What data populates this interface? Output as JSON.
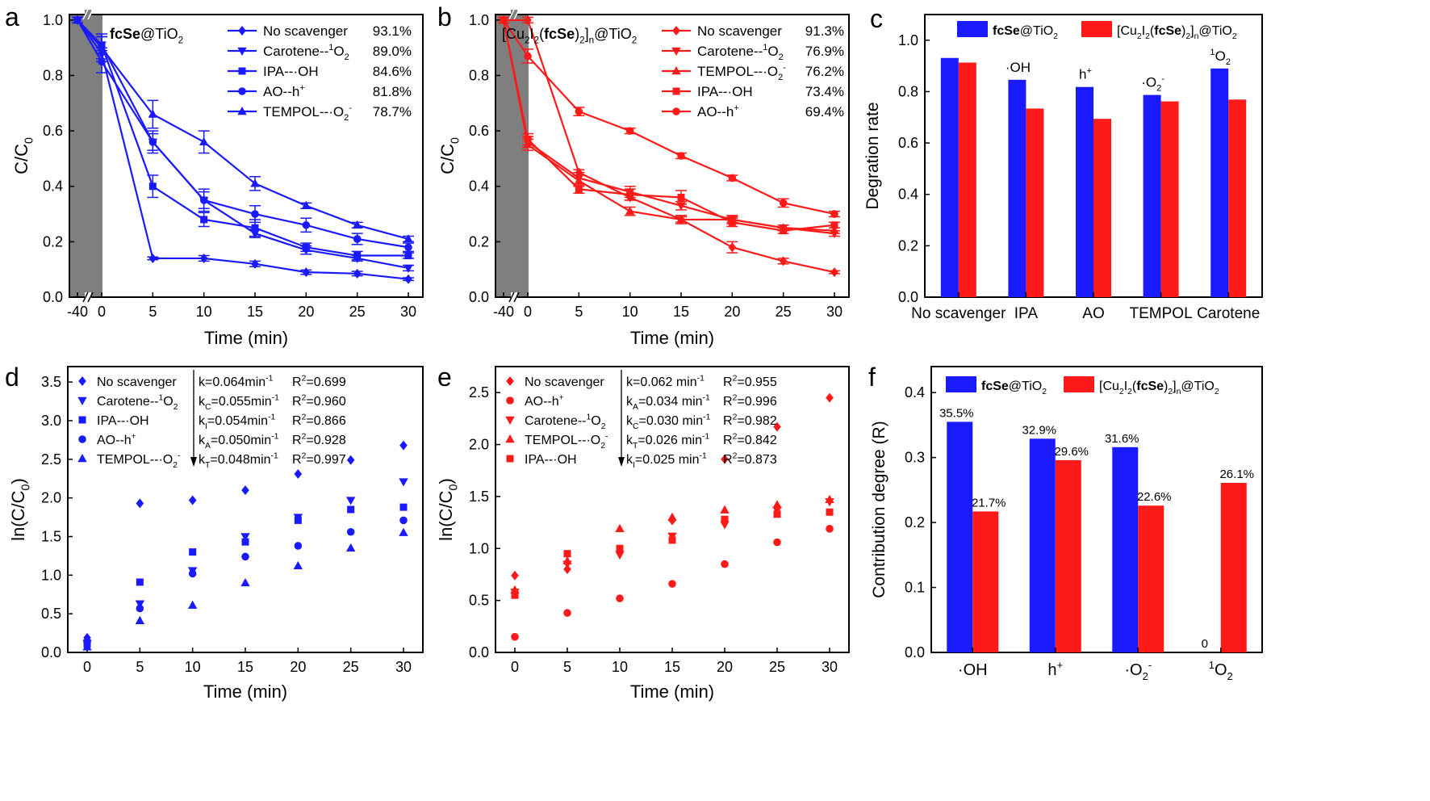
{
  "colors": {
    "blue": "#1a1aff",
    "red": "#ff1a1a",
    "gray": "#7f7f7f",
    "axis": "#000000"
  },
  "chart_data": [
    {
      "panel": "a",
      "type": "line",
      "title": "fcSe@TiO2",
      "xlabel": "Time (min)",
      "ylabel": "C/C0",
      "x": [
        -40,
        0,
        5,
        10,
        15,
        20,
        25,
        30
      ],
      "xticks": [
        "-40",
        "0",
        "5",
        "10",
        "15",
        "20",
        "25",
        "30"
      ],
      "yticks": [
        "0.0",
        "0.2",
        "0.4",
        "0.6",
        "0.8",
        "1.0"
      ],
      "ylim": [
        0,
        1.02
      ],
      "shaded_region": "dark adsorption (-40 to 0)",
      "legend_position": "top-right",
      "series": [
        {
          "name": "No scavenger",
          "value_label": "93.1%",
          "marker": "diamond",
          "values": [
            1.0,
            0.88,
            0.14,
            0.14,
            0.12,
            0.09,
            0.085,
            0.065
          ],
          "errors": [
            0.01,
            0.02,
            0.005,
            0.01,
            0.01,
            0.008,
            0.008,
            0.005
          ]
        },
        {
          "name": "Carotene--1O2",
          "value_label": "89.0%",
          "marker": "down-triangle",
          "values": [
            1.0,
            0.91,
            0.56,
            0.35,
            0.23,
            0.17,
            0.14,
            0.105
          ],
          "errors": [
            0.01,
            0.03,
            0.03,
            0.03,
            0.015,
            0.015,
            0.01,
            0.01
          ]
        },
        {
          "name": "IPA--OH",
          "value_label": "84.6%",
          "marker": "square",
          "values": [
            1.0,
            0.91,
            0.4,
            0.28,
            0.25,
            0.18,
            0.15,
            0.15
          ],
          "errors": [
            0.01,
            0.03,
            0.04,
            0.025,
            0.03,
            0.015,
            0.015,
            0.01
          ]
        },
        {
          "name": "AO--h+",
          "value_label": "81.8%",
          "marker": "circle",
          "values": [
            1.0,
            0.85,
            0.56,
            0.35,
            0.3,
            0.26,
            0.21,
            0.18
          ],
          "errors": [
            0.01,
            0.04,
            0.04,
            0.04,
            0.03,
            0.025,
            0.02,
            0.015
          ]
        },
        {
          "name": "TEMPOL--O2-",
          "value_label": "78.7%",
          "marker": "up-triangle",
          "values": [
            1.0,
            0.9,
            0.66,
            0.56,
            0.41,
            0.33,
            0.26,
            0.21
          ],
          "errors": [
            0.01,
            0.05,
            0.05,
            0.04,
            0.025,
            0.01,
            0.01,
            0.01
          ]
        }
      ]
    },
    {
      "panel": "b",
      "type": "line",
      "title": "[Cu2I2(fcSe)2]n@TiO2",
      "xlabel": "Time (min)",
      "ylabel": "C/C0",
      "x": [
        -40,
        0,
        5,
        10,
        15,
        20,
        25,
        30
      ],
      "xticks": [
        "-40",
        "0",
        "5",
        "10",
        "15",
        "20",
        "25",
        "30"
      ],
      "yticks": [
        "0.0",
        "0.2",
        "0.4",
        "0.6",
        "0.8",
        "1.0"
      ],
      "ylim": [
        0,
        1.02
      ],
      "shaded_region": "dark adsorption (-40 to 0)",
      "legend_position": "top-right",
      "series": [
        {
          "name": "No scavenger",
          "value_label": "91.3%",
          "marker": "diamond",
          "values": [
            1.0,
            1.0,
            0.45,
            0.36,
            0.28,
            0.18,
            0.13,
            0.09
          ],
          "errors": [
            0.01,
            0.01,
            0.01,
            0.01,
            0.01,
            0.02,
            0.01,
            0.005
          ]
        },
        {
          "name": "Carotene--1O2",
          "value_label": "76.9%",
          "marker": "down-triangle",
          "values": [
            1.0,
            0.56,
            0.43,
            0.38,
            0.33,
            0.28,
            0.25,
            0.23
          ],
          "errors": [
            0.01,
            0.02,
            0.02,
            0.02,
            0.015,
            0.015,
            0.01,
            0.01
          ]
        },
        {
          "name": "TEMPOL--O2-",
          "value_label": "76.2%",
          "marker": "up-triangle",
          "values": [
            1.0,
            0.55,
            0.42,
            0.31,
            0.28,
            0.28,
            0.25,
            0.24
          ],
          "errors": [
            0.01,
            0.02,
            0.02,
            0.015,
            0.015,
            0.01,
            0.01,
            0.01
          ]
        },
        {
          "name": "IPA--OH",
          "value_label": "73.4%",
          "marker": "square",
          "values": [
            1.0,
            0.57,
            0.39,
            0.37,
            0.36,
            0.27,
            0.24,
            0.26
          ],
          "errors": [
            0.01,
            0.02,
            0.015,
            0.02,
            0.025,
            0.015,
            0.01,
            0.01
          ]
        },
        {
          "name": "AO--h+",
          "value_label": "69.4%",
          "marker": "circle",
          "values": [
            1.0,
            0.87,
            0.67,
            0.6,
            0.51,
            0.43,
            0.34,
            0.3
          ],
          "errors": [
            0.01,
            0.025,
            0.015,
            0.01,
            0.01,
            0.01,
            0.015,
            0.01
          ]
        }
      ]
    },
    {
      "panel": "c",
      "type": "bar",
      "ylabel": "Degration rate",
      "categories": [
        "No scavenger",
        "IPA",
        "AO",
        "TEMPOL",
        "Carotene"
      ],
      "bar_annotations": [
        "",
        "·OH",
        "h+",
        "·O2-",
        "1O2"
      ],
      "yticks": [
        "0.0",
        "0.2",
        "0.4",
        "0.6",
        "0.8",
        "1.0"
      ],
      "ylim": [
        0,
        1.1
      ],
      "legend_position": "top",
      "series": [
        {
          "name": "fcSe@TiO2",
          "values": [
            0.931,
            0.846,
            0.818,
            0.787,
            0.89
          ]
        },
        {
          "name": "[Cu2I2(fcSe)2]n@TiO2",
          "values": [
            0.913,
            0.734,
            0.694,
            0.762,
            0.769
          ]
        }
      ]
    },
    {
      "panel": "d",
      "type": "scatter",
      "xlabel": "Time (min)",
      "ylabel": "ln(C/C0)",
      "x": [
        0,
        5,
        10,
        15,
        20,
        25,
        30
      ],
      "xticks": [
        "0",
        "5",
        "10",
        "15",
        "20",
        "25",
        "30"
      ],
      "yticks": [
        "0.0",
        "0.5",
        "1.0",
        "1.5",
        "2.0",
        "2.5",
        "3.0",
        "3.5"
      ],
      "ylim": [
        0,
        3.7
      ],
      "legend_position": "top-left",
      "series": [
        {
          "name": "No scavenger",
          "marker": "diamond",
          "fit": "k=0.064min-1",
          "r2": "R2=0.699",
          "values": [
            0.19,
            1.93,
            1.97,
            2.1,
            2.31,
            2.49,
            2.68
          ]
        },
        {
          "name": "Carotene--1O2",
          "marker": "down-triangle",
          "fit": "kC=0.055min-1",
          "r2": "R2=0.960",
          "values": [
            0.12,
            0.63,
            1.06,
            1.5,
            1.75,
            1.97,
            2.21
          ]
        },
        {
          "name": "IPA--OH",
          "marker": "square",
          "fit": "kI=0.054min-1",
          "r2": "R2=0.866",
          "values": [
            0.11,
            0.91,
            1.3,
            1.43,
            1.71,
            1.85,
            1.88
          ]
        },
        {
          "name": "AO--h+",
          "marker": "circle",
          "fit": "kA=0.050min-1",
          "r2": "R2=0.928",
          "values": [
            0.14,
            0.57,
            1.02,
            1.24,
            1.38,
            1.56,
            1.71
          ]
        },
        {
          "name": "TEMPOL--O2-",
          "marker": "up-triangle",
          "fit": "kT=0.048min-1",
          "r2": "R2=0.997",
          "values": [
            0.07,
            0.41,
            0.61,
            0.9,
            1.12,
            1.35,
            1.55
          ]
        }
      ]
    },
    {
      "panel": "e",
      "type": "scatter",
      "xlabel": "Time (min)",
      "ylabel": "ln(C/C0)",
      "x": [
        0,
        5,
        10,
        15,
        20,
        25,
        30
      ],
      "xticks": [
        "0",
        "5",
        "10",
        "15",
        "20",
        "25",
        "30"
      ],
      "yticks": [
        "0.0",
        "0.5",
        "1.0",
        "1.5",
        "2.0",
        "2.5"
      ],
      "ylim": [
        0,
        2.75
      ],
      "legend_position": "top-left",
      "series": [
        {
          "name": "No scavenger",
          "marker": "diamond",
          "fit": "k=0.062 min-1",
          "r2": "R2=0.955",
          "values": [
            0.74,
            0.8,
            0.98,
            1.27,
            1.86,
            2.17,
            2.45
          ]
        },
        {
          "name": "AO--h+",
          "marker": "circle",
          "fit": "kA=0.034 min-1",
          "r2": "R2=0.996",
          "values": [
            0.15,
            0.38,
            0.52,
            0.66,
            0.85,
            1.06,
            1.19
          ]
        },
        {
          "name": "Carotene--1O2",
          "marker": "down-triangle",
          "fit": "kC=0.030 min-1",
          "r2": "R2=0.982",
          "values": [
            0.58,
            0.85,
            0.94,
            1.12,
            1.23,
            1.37,
            1.45
          ]
        },
        {
          "name": "TEMPOL--O2-",
          "marker": "up-triangle",
          "fit": "kT=0.026 min-1",
          "r2": "R2=0.842",
          "values": [
            0.6,
            0.88,
            1.19,
            1.3,
            1.37,
            1.42,
            1.47
          ]
        },
        {
          "name": "IPA--OH",
          "marker": "square",
          "fit": "kI=0.025 min-1",
          "r2": "R2=0.873",
          "values": [
            0.55,
            0.95,
            1.0,
            1.08,
            1.28,
            1.33,
            1.35
          ]
        }
      ]
    },
    {
      "panel": "f",
      "type": "bar",
      "ylabel": "Contribution degree (R)",
      "categories": [
        "·OH",
        "h+",
        "·O2-",
        "1O2"
      ],
      "yticks": [
        "0.0",
        "0.1",
        "0.2",
        "0.3",
        "0.4"
      ],
      "ylim": [
        0,
        0.44
      ],
      "legend_position": "top",
      "series": [
        {
          "name": "fcSe@TiO2",
          "values": [
            0.355,
            0.329,
            0.316,
            0
          ],
          "labels": [
            "35.5%",
            "32.9%",
            "31.6%",
            "0"
          ]
        },
        {
          "name": "[Cu2I2(fcSe)2]n@TiO2",
          "values": [
            0.217,
            0.296,
            0.226,
            0.261
          ],
          "labels": [
            "21.7%",
            "29.6%",
            "22.6%",
            "26.1%"
          ]
        }
      ]
    }
  ],
  "rich": {
    "a_title": [
      [
        "fcSe",
        "b"
      ],
      [
        "@TiO",
        ""
      ],
      [
        "2",
        "sub"
      ]
    ],
    "b_title": [
      [
        "[Cu",
        ""
      ],
      [
        "2",
        "sub"
      ],
      [
        "I",
        ""
      ],
      [
        "2",
        "sub"
      ],
      [
        "(",
        ""
      ],
      [
        "fcSe",
        "b"
      ],
      [
        ")",
        ""
      ],
      [
        "2",
        "sub"
      ],
      [
        "]",
        ""
      ],
      [
        "n",
        "sub"
      ],
      [
        "@TiO",
        ""
      ],
      [
        "2",
        "sub"
      ]
    ],
    "cc0": [
      [
        "C/C",
        ""
      ],
      [
        "0",
        "sub"
      ]
    ],
    "lncc0": [
      [
        "ln(C/C",
        ""
      ],
      [
        "0",
        "sub"
      ],
      [
        ")",
        ""
      ]
    ],
    "legend_names": {
      "No scavenger": [
        [
          "No scavenger",
          ""
        ]
      ],
      "Carotene--1O2": [
        [
          "Carotene--",
          ""
        ],
        [
          "1",
          "sup"
        ],
        [
          "O",
          ""
        ],
        [
          "2",
          "sub"
        ]
      ],
      "IPA--OH": [
        [
          "IPA--·OH",
          ""
        ]
      ],
      "AO--h+": [
        [
          "AO--h",
          ""
        ],
        [
          "+",
          "sup"
        ]
      ],
      "TEMPOL--O2-": [
        [
          "TEMPOL--·O",
          ""
        ],
        [
          "2",
          "sub"
        ],
        [
          "-",
          "sup"
        ]
      ]
    },
    "fits": {
      "k=0.064min-1": [
        [
          "k=0.064min",
          ""
        ],
        [
          "-1",
          "sup"
        ]
      ],
      "kC=0.055min-1": [
        [
          "k",
          ""
        ],
        [
          "C",
          "sub"
        ],
        [
          "=0.055min",
          ""
        ],
        [
          "-1",
          "sup"
        ]
      ],
      "kI=0.054min-1": [
        [
          "k",
          ""
        ],
        [
          "I",
          "sub"
        ],
        [
          "=0.054min",
          ""
        ],
        [
          "-1",
          "sup"
        ]
      ],
      "kA=0.050min-1": [
        [
          "k",
          ""
        ],
        [
          "A",
          "sub"
        ],
        [
          "=0.050min",
          ""
        ],
        [
          "-1",
          "sup"
        ]
      ],
      "kT=0.048min-1": [
        [
          "k",
          ""
        ],
        [
          "T",
          "sub"
        ],
        [
          "=0.048min",
          ""
        ],
        [
          "-1",
          "sup"
        ]
      ],
      "k=0.062 min-1": [
        [
          "k=0.062 min",
          ""
        ],
        [
          "-1",
          "sup"
        ]
      ],
      "kA=0.034 min-1": [
        [
          "k",
          ""
        ],
        [
          "A",
          "sub"
        ],
        [
          "=0.034 min",
          ""
        ],
        [
          "-1",
          "sup"
        ]
      ],
      "kC=0.030 min-1": [
        [
          "k",
          ""
        ],
        [
          "C",
          "sub"
        ],
        [
          "=0.030 min",
          ""
        ],
        [
          "-1",
          "sup"
        ]
      ],
      "kT=0.026 min-1": [
        [
          "k",
          ""
        ],
        [
          "T",
          "sub"
        ],
        [
          "=0.026 min",
          ""
        ],
        [
          "-1",
          "sup"
        ]
      ],
      "kI=0.025 min-1": [
        [
          "k",
          ""
        ],
        [
          "I",
          "sub"
        ],
        [
          "=0.025 min",
          ""
        ],
        [
          "-1",
          "sup"
        ]
      ]
    },
    "r2": {
      "R2=0.699": [
        [
          "R",
          ""
        ],
        [
          "2",
          "sup"
        ],
        [
          "=0.699",
          ""
        ]
      ],
      "R2=0.960": [
        [
          "R",
          ""
        ],
        [
          "2",
          "sup"
        ],
        [
          "=0.960",
          ""
        ]
      ],
      "R2=0.866": [
        [
          "R",
          ""
        ],
        [
          "2",
          "sup"
        ],
        [
          "=0.866",
          ""
        ]
      ],
      "R2=0.928": [
        [
          "R",
          ""
        ],
        [
          "2",
          "sup"
        ],
        [
          "=0.928",
          ""
        ]
      ],
      "R2=0.997": [
        [
          "R",
          ""
        ],
        [
          "2",
          "sup"
        ],
        [
          "=0.997",
          ""
        ]
      ],
      "R2=0.955": [
        [
          "R",
          ""
        ],
        [
          "2",
          "sup"
        ],
        [
          "=0.955",
          ""
        ]
      ],
      "R2=0.996": [
        [
          "R",
          ""
        ],
        [
          "2",
          "sup"
        ],
        [
          "=0.996",
          ""
        ]
      ],
      "R2=0.982": [
        [
          "R",
          ""
        ],
        [
          "2",
          "sup"
        ],
        [
          "=0.982",
          ""
        ]
      ],
      "R2=0.842": [
        [
          "R",
          ""
        ],
        [
          "2",
          "sup"
        ],
        [
          "=0.842",
          ""
        ]
      ],
      "R2=0.873": [
        [
          "R",
          ""
        ],
        [
          "2",
          "sup"
        ],
        [
          "=0.873",
          ""
        ]
      ]
    },
    "c_annot": {
      "·OH": [
        [
          "·OH",
          ""
        ]
      ],
      "h+": [
        [
          "h",
          ""
        ],
        [
          "+",
          "sup"
        ]
      ],
      "·O2-": [
        [
          "·O",
          ""
        ],
        [
          "2",
          "sub"
        ],
        [
          "-",
          "sup"
        ]
      ],
      "1O2": [
        [
          "1",
          "sup"
        ],
        [
          "O",
          ""
        ],
        [
          "2",
          "sub"
        ]
      ]
    },
    "legend_cu": [
      [
        "[Cu",
        ""
      ],
      [
        "2",
        "sub"
      ],
      [
        "I",
        ""
      ],
      [
        "2",
        "sub"
      ],
      [
        "(",
        ""
      ],
      [
        "fcSe",
        "b"
      ],
      [
        ")",
        ""
      ],
      [
        "2",
        "sub"
      ],
      [
        "]",
        ""
      ],
      [
        "n",
        "sub"
      ],
      [
        "@TiO",
        ""
      ],
      [
        "2",
        "sub"
      ]
    ],
    "legend_fc": [
      [
        "fcSe",
        "b"
      ],
      [
        "@TiO",
        ""
      ],
      [
        "2",
        "sub"
      ]
    ]
  },
  "panel_letters": [
    "a",
    "b",
    "c",
    "d",
    "e",
    "f"
  ]
}
